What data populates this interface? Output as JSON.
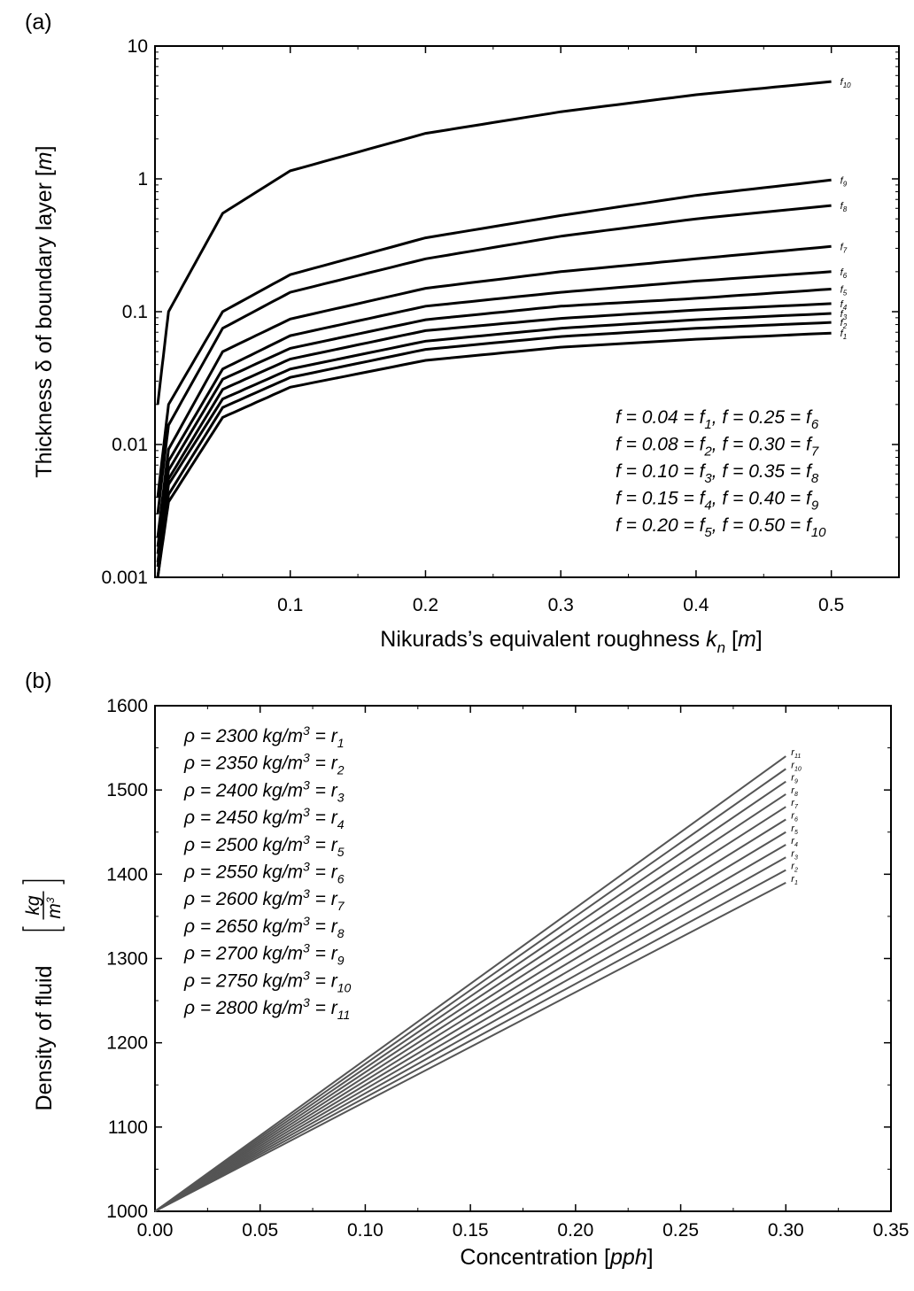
{
  "chart_data": [
    {
      "panel_label": "(a)",
      "type": "line",
      "y_scale": "log",
      "xlabel_parts": [
        "Nikurads’s equivalent roughness ",
        "k",
        "n",
        " [",
        "m",
        "]"
      ],
      "ylabel_parts": [
        "Thickness δ of boundary layer [",
        "m",
        "]"
      ],
      "xlim": [
        0,
        0.55
      ],
      "ylim": [
        0.001,
        10
      ],
      "x_ticks": [
        0.1,
        0.2,
        0.3,
        0.4,
        0.5
      ],
      "x_tick_labels": [
        "0.1",
        "0.2",
        "0.3",
        "0.4",
        "0.5"
      ],
      "y_ticks": [
        0.001,
        0.01,
        0.1,
        1,
        10
      ],
      "y_tick_labels": [
        "0.001",
        "0.01",
        "0.1",
        "1",
        "10"
      ],
      "x": [
        0.002,
        0.01,
        0.05,
        0.1,
        0.2,
        0.3,
        0.4,
        0.5
      ],
      "series": [
        {
          "name": "f1",
          "label": "f",
          "sub": "1",
          "values": [
            0.001,
            0.0037,
            0.016,
            0.027,
            0.043,
            0.054,
            0.062,
            0.069
          ]
        },
        {
          "name": "f2",
          "label": "f",
          "sub": "2",
          "values": [
            0.001,
            0.0042,
            0.019,
            0.032,
            0.052,
            0.065,
            0.075,
            0.083
          ]
        },
        {
          "name": "f3",
          "label": "f",
          "sub": "3",
          "values": [
            0.0012,
            0.005,
            0.022,
            0.037,
            0.06,
            0.075,
            0.087,
            0.097
          ]
        },
        {
          "name": "f4",
          "label": "f",
          "sub": "4",
          "values": [
            0.0013,
            0.0055,
            0.026,
            0.044,
            0.072,
            0.089,
            0.103,
            0.115
          ]
        },
        {
          "name": "f5",
          "label": "f",
          "sub": "5",
          "values": [
            0.0015,
            0.0064,
            0.031,
            0.053,
            0.087,
            0.11,
            0.126,
            0.148
          ]
        },
        {
          "name": "f6",
          "label": "f",
          "sub": "6",
          "values": [
            0.0017,
            0.0075,
            0.037,
            0.066,
            0.11,
            0.14,
            0.17,
            0.2
          ]
        },
        {
          "name": "f7",
          "label": "f",
          "sub": "7",
          "values": [
            0.002,
            0.0092,
            0.05,
            0.088,
            0.15,
            0.2,
            0.25,
            0.31
          ]
        },
        {
          "name": "f8",
          "label": "f",
          "sub": "8",
          "values": [
            0.003,
            0.014,
            0.075,
            0.14,
            0.25,
            0.37,
            0.5,
            0.63
          ]
        },
        {
          "name": "f9",
          "label": "f",
          "sub": "9",
          "values": [
            0.004,
            0.02,
            0.1,
            0.19,
            0.36,
            0.53,
            0.75,
            0.98
          ]
        },
        {
          "name": "f10",
          "label": "f",
          "sub": "10",
          "values": [
            0.02,
            0.1,
            0.55,
            1.15,
            2.2,
            3.2,
            4.3,
            5.4
          ]
        }
      ],
      "legend_rows": [
        [
          [
            "f = 0.04 = f",
            "1",
            ",  "
          ],
          [
            "f = 0.25 = f",
            "6",
            ""
          ]
        ],
        [
          [
            "f = 0.08 = f",
            "2",
            ",  "
          ],
          [
            "f = 0.30 = f",
            "7",
            ""
          ]
        ],
        [
          [
            "f = 0.10 = f",
            "3",
            ",  "
          ],
          [
            "f = 0.35 = f",
            "8",
            ""
          ]
        ],
        [
          [
            "f = 0.15 = f",
            "4",
            ",  "
          ],
          [
            "f = 0.40 = f",
            "9",
            ""
          ]
        ],
        [
          [
            "f = 0.20 = f",
            "5",
            ",  "
          ],
          [
            "f = 0.50 = f",
            "10",
            ""
          ]
        ]
      ],
      "legend_position": "bottom-right",
      "grid": false
    },
    {
      "panel_label": "(b)",
      "type": "line",
      "xlabel_parts": [
        "Concentration [",
        "pph",
        "]"
      ],
      "ylabel_parts": [
        "Density of fluid "
      ],
      "ylabel_unit": {
        "numerator": "kg",
        "denominator": "m",
        "denominator_exp": "3"
      },
      "xlim": [
        0,
        0.35
      ],
      "ylim": [
        1000,
        1600
      ],
      "x_ticks": [
        0,
        0.05,
        0.1,
        0.15,
        0.2,
        0.25,
        0.3,
        0.35
      ],
      "x_tick_labels": [
        "0.00",
        "0.05",
        "0.10",
        "0.15",
        "0.20",
        "0.25",
        "0.30",
        "0.35"
      ],
      "y_ticks": [
        1000,
        1100,
        1200,
        1300,
        1400,
        1500,
        1600
      ],
      "y_tick_labels": [
        "1000",
        "1100",
        "1200",
        "1300",
        "1400",
        "1500",
        "1600"
      ],
      "x": [
        0,
        0.3
      ],
      "series": [
        {
          "name": "r1",
          "label": "r",
          "sub": "1",
          "values": [
            1000,
            1390
          ]
        },
        {
          "name": "r2",
          "label": "r",
          "sub": "2",
          "values": [
            1000,
            1405
          ]
        },
        {
          "name": "r3",
          "label": "r",
          "sub": "3",
          "values": [
            1000,
            1420
          ]
        },
        {
          "name": "r4",
          "label": "r",
          "sub": "4",
          "values": [
            1000,
            1435
          ]
        },
        {
          "name": "r5",
          "label": "r",
          "sub": "5",
          "values": [
            1000,
            1450
          ]
        },
        {
          "name": "r6",
          "label": "r",
          "sub": "6",
          "values": [
            1000,
            1465
          ]
        },
        {
          "name": "r7",
          "label": "r",
          "sub": "7",
          "values": [
            1000,
            1480
          ]
        },
        {
          "name": "r8",
          "label": "r",
          "sub": "8",
          "values": [
            1000,
            1495
          ]
        },
        {
          "name": "r9",
          "label": "r",
          "sub": "9",
          "values": [
            1000,
            1510
          ]
        },
        {
          "name": "r10",
          "label": "r",
          "sub": "10",
          "values": [
            1000,
            1525
          ]
        },
        {
          "name": "r11",
          "label": "r",
          "sub": "11",
          "values": [
            1000,
            1540
          ]
        }
      ],
      "legend_rows": [
        [
          "ρ = 2300 ",
          "kg/m",
          "3",
          " = r",
          "1"
        ],
        [
          "ρ = 2350 ",
          "kg/m",
          "3",
          " = r",
          "2"
        ],
        [
          "ρ = 2400 ",
          "kg/m",
          "3",
          " = r",
          "3"
        ],
        [
          "ρ = 2450 ",
          "kg/m",
          "3",
          " = r",
          "4"
        ],
        [
          "ρ = 2500 ",
          "kg/m",
          "3",
          " = r",
          "5"
        ],
        [
          "ρ = 2550 ",
          "kg/m",
          "3",
          " = r",
          "6"
        ],
        [
          "ρ = 2600 ",
          "kg/m",
          "3",
          " = r",
          "7"
        ],
        [
          "ρ = 2650 ",
          "kg/m",
          "3",
          " = r",
          "8"
        ],
        [
          "ρ = 2700 ",
          "kg/m",
          "3",
          " = r",
          "9"
        ],
        [
          "ρ = 2750 ",
          "kg/m",
          "3",
          " = r",
          "10"
        ],
        [
          "ρ = 2800 ",
          "kg/m",
          "3",
          " = r",
          "11"
        ]
      ],
      "legend_position": "top-left",
      "line_color": "#555555",
      "grid": false
    }
  ]
}
